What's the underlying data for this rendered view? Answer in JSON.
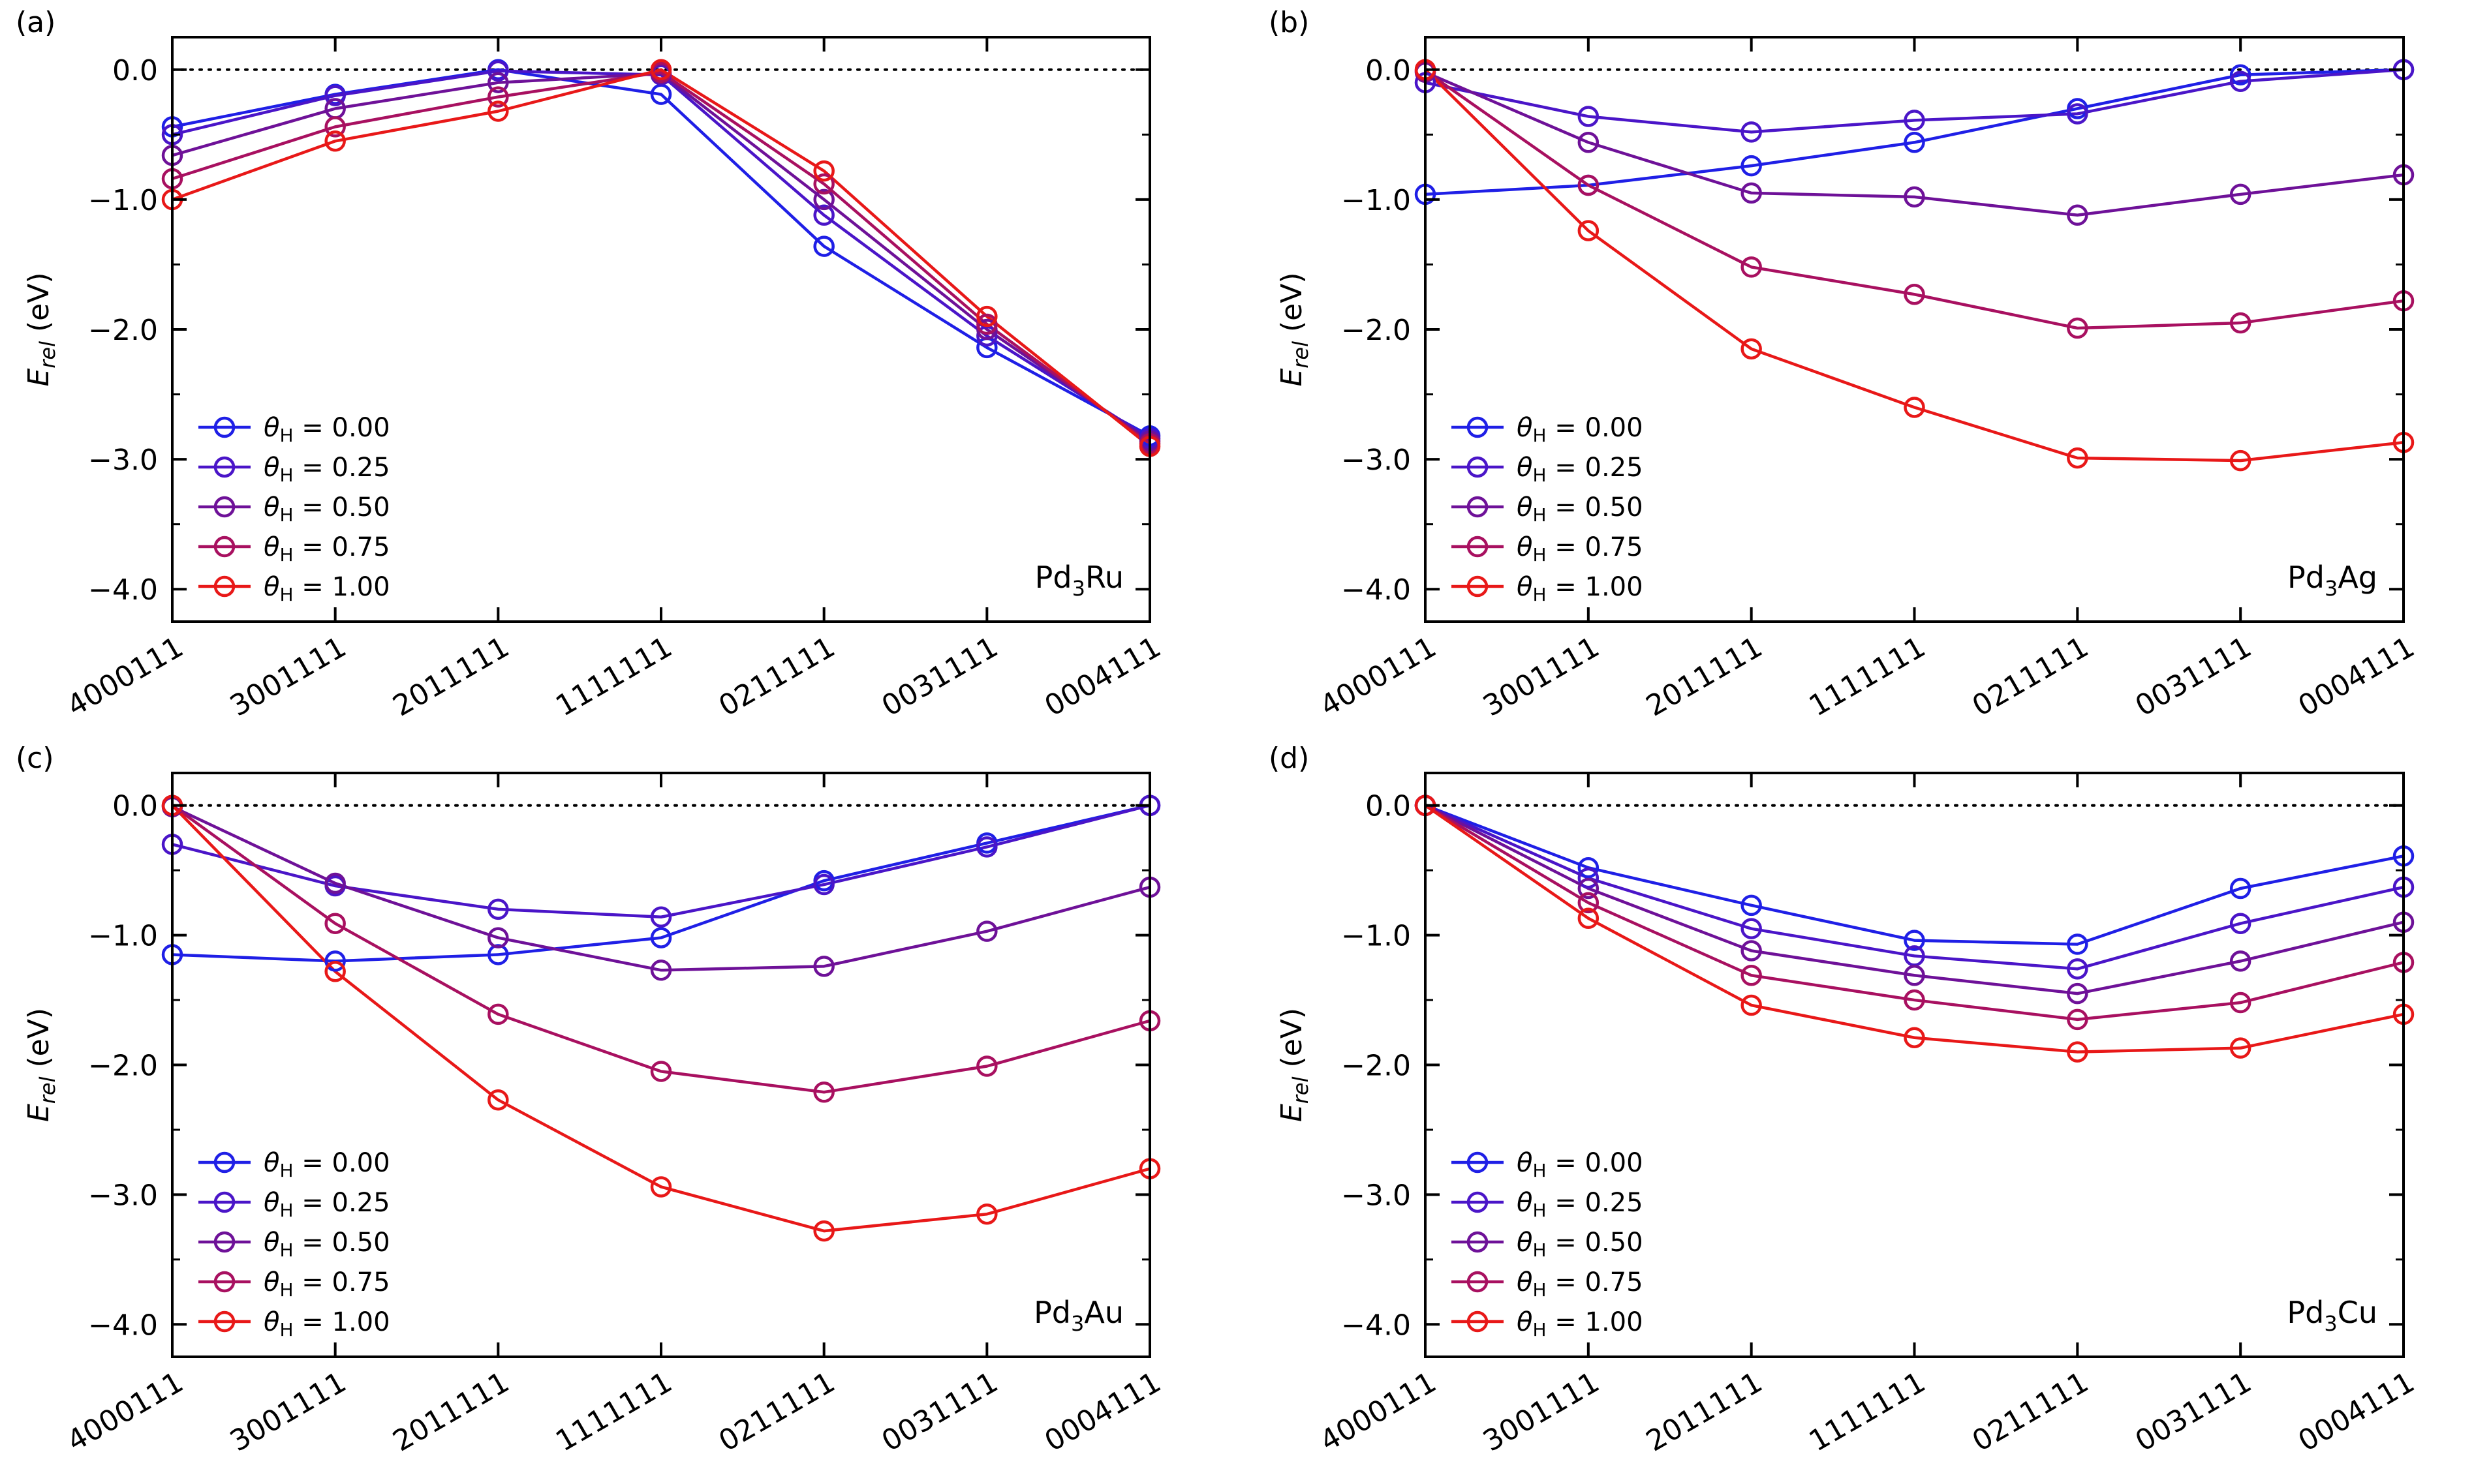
{
  "chart_data": [
    {
      "panel": "(a)",
      "type": "line",
      "alloy": {
        "base": "Pd",
        "sub": "3",
        "rest": "Ru"
      },
      "ylabel": {
        "base": "E",
        "sub": "rel",
        "rest": " (eV)"
      },
      "categories": [
        "4000111",
        "3001111",
        "2011111",
        "1111111",
        "0211111",
        "0031111",
        "0004111"
      ],
      "ylim": [
        -4.25,
        0.25
      ],
      "yticks": [
        0.0,
        -1.0,
        -2.0,
        -3.0,
        -4.0
      ],
      "ytick_labels": [
        "0.0",
        "−1.0",
        "−2.0",
        "−3.0",
        "−4.0"
      ],
      "reference_line": 0.0,
      "series": [
        {
          "name": "0.00",
          "color": "#1f1fe6",
          "values": [
            -0.44,
            -0.19,
            0.0,
            -0.19,
            -1.36,
            -2.14,
            -2.82
          ]
        },
        {
          "name": "0.25",
          "color": "#4a15c8",
          "values": [
            -0.5,
            -0.2,
            -0.01,
            -0.04,
            -1.12,
            -2.05,
            -2.84
          ]
        },
        {
          "name": "0.50",
          "color": "#6e1198",
          "values": [
            -0.66,
            -0.3,
            -0.1,
            -0.03,
            -1.0,
            -2.0,
            -2.86
          ]
        },
        {
          "name": "0.75",
          "color": "#a81060",
          "values": [
            -0.84,
            -0.44,
            -0.21,
            -0.02,
            -0.88,
            -1.96,
            -2.88
          ]
        },
        {
          "name": "1.00",
          "color": "#e81818",
          "values": [
            -1.0,
            -0.55,
            -0.32,
            0.0,
            -0.78,
            -1.9,
            -2.9
          ]
        }
      ]
    },
    {
      "panel": "(b)",
      "type": "line",
      "alloy": {
        "base": "Pd",
        "sub": "3",
        "rest": "Ag"
      },
      "ylabel": {
        "base": "E",
        "sub": "rel",
        "rest": " (eV)"
      },
      "categories": [
        "4000111",
        "3001111",
        "2011111",
        "1111111",
        "0211111",
        "0031111",
        "0004111"
      ],
      "ylim": [
        -4.25,
        0.25
      ],
      "yticks": [
        0.0,
        -1.0,
        -2.0,
        -3.0,
        -4.0
      ],
      "ytick_labels": [
        "0.0",
        "−1.0",
        "−2.0",
        "−3.0",
        "−4.0"
      ],
      "reference_line": 0.0,
      "series": [
        {
          "name": "0.00",
          "color": "#1f1fe6",
          "values": [
            -0.96,
            -0.89,
            -0.74,
            -0.56,
            -0.3,
            -0.04,
            0.0
          ]
        },
        {
          "name": "0.25",
          "color": "#4a15c8",
          "values": [
            -0.1,
            -0.36,
            -0.48,
            -0.39,
            -0.34,
            -0.09,
            0.0
          ]
        },
        {
          "name": "0.50",
          "color": "#6e1198",
          "values": [
            -0.02,
            -0.56,
            -0.95,
            -0.98,
            -1.12,
            -0.96,
            -0.81
          ]
        },
        {
          "name": "0.75",
          "color": "#a81060",
          "values": [
            -0.01,
            -0.89,
            -1.52,
            -1.73,
            -1.99,
            -1.95,
            -1.78
          ]
        },
        {
          "name": "1.00",
          "color": "#e81818",
          "values": [
            0.0,
            -1.24,
            -2.15,
            -2.6,
            -2.99,
            -3.01,
            -2.87
          ]
        }
      ]
    },
    {
      "panel": "(c)",
      "type": "line",
      "alloy": {
        "base": "Pd",
        "sub": "3",
        "rest": "Au"
      },
      "ylabel": {
        "base": "E",
        "sub": "rel",
        "rest": " (eV)"
      },
      "categories": [
        "4000111",
        "3001111",
        "2011111",
        "1111111",
        "0211111",
        "0031111",
        "0004111"
      ],
      "ylim": [
        -4.25,
        0.25
      ],
      "yticks": [
        0.0,
        -1.0,
        -2.0,
        -3.0,
        -4.0
      ],
      "ytick_labels": [
        "0.0",
        "−1.0",
        "−2.0",
        "−3.0",
        "−4.0"
      ],
      "reference_line": 0.0,
      "series": [
        {
          "name": "0.00",
          "color": "#1f1fe6",
          "values": [
            -1.15,
            -1.2,
            -1.15,
            -1.02,
            -0.58,
            -0.29,
            0.0
          ]
        },
        {
          "name": "0.25",
          "color": "#4a15c8",
          "values": [
            -0.3,
            -0.62,
            -0.8,
            -0.86,
            -0.61,
            -0.32,
            0.0
          ]
        },
        {
          "name": "0.50",
          "color": "#6e1198",
          "values": [
            -0.01,
            -0.6,
            -1.02,
            -1.27,
            -1.24,
            -0.97,
            -0.63
          ]
        },
        {
          "name": "0.75",
          "color": "#a81060",
          "values": [
            0.0,
            -0.91,
            -1.61,
            -2.05,
            -2.21,
            -2.01,
            -1.66
          ]
        },
        {
          "name": "1.00",
          "color": "#e81818",
          "values": [
            0.0,
            -1.28,
            -2.27,
            -2.94,
            -3.28,
            -3.15,
            -2.8
          ]
        }
      ]
    },
    {
      "panel": "(d)",
      "type": "line",
      "alloy": {
        "base": "Pd",
        "sub": "3",
        "rest": "Cu"
      },
      "ylabel": {
        "base": "E",
        "sub": "rel",
        "rest": " (eV)"
      },
      "categories": [
        "4000111",
        "3001111",
        "2011111",
        "1111111",
        "0211111",
        "0031111",
        "0004111"
      ],
      "ylim": [
        -4.25,
        0.25
      ],
      "yticks": [
        0.0,
        -1.0,
        -2.0,
        -3.0,
        -4.0
      ],
      "ytick_labels": [
        "0.0",
        "−1.0",
        "−2.0",
        "−3.0",
        "−4.0"
      ],
      "reference_line": 0.0,
      "series": [
        {
          "name": "0.00",
          "color": "#1f1fe6",
          "values": [
            0.0,
            -0.48,
            -0.77,
            -1.04,
            -1.07,
            -0.64,
            -0.39
          ]
        },
        {
          "name": "0.25",
          "color": "#4a15c8",
          "values": [
            0.0,
            -0.56,
            -0.95,
            -1.16,
            -1.26,
            -0.91,
            -0.63
          ]
        },
        {
          "name": "0.50",
          "color": "#6e1198",
          "values": [
            0.0,
            -0.64,
            -1.12,
            -1.31,
            -1.45,
            -1.2,
            -0.9
          ]
        },
        {
          "name": "0.75",
          "color": "#a81060",
          "values": [
            0.0,
            -0.75,
            -1.31,
            -1.5,
            -1.65,
            -1.52,
            -1.21
          ]
        },
        {
          "name": "1.00",
          "color": "#e81818",
          "values": [
            0.0,
            -0.87,
            -1.54,
            -1.79,
            -1.9,
            -1.87,
            -1.61
          ]
        }
      ]
    }
  ],
  "legend": {
    "theta_symbol": "θ",
    "theta_sub": "H",
    "equals": " = "
  }
}
